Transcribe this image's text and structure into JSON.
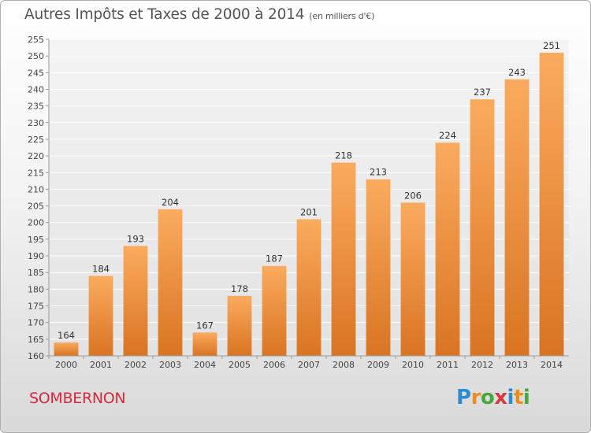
{
  "title": "Autres Impôts et Taxes de 2000 à 2014",
  "subtitle": "(en milliers d'€)",
  "commune": "SOMBERNON",
  "logo": {
    "letters": [
      "P",
      "r",
      "o",
      "x",
      "i",
      "t",
      "i"
    ],
    "colors": [
      "#2e8bd0",
      "#f08c1a",
      "#46a83c",
      "#d5383e",
      "#2e8bd0",
      "#f08c1a",
      "#46a83c"
    ]
  },
  "colors": {
    "bar_top": "#fbab5e",
    "bar_bottom": "#d97422",
    "title": "#555555",
    "commune": "#d2293f"
  },
  "chart_data": {
    "type": "bar",
    "categories": [
      "2000",
      "2001",
      "2002",
      "2003",
      "2004",
      "2005",
      "2006",
      "2007",
      "2008",
      "2009",
      "2010",
      "2011",
      "2012",
      "2013",
      "2014"
    ],
    "values": [
      164,
      184,
      193,
      204,
      167,
      178,
      187,
      201,
      218,
      213,
      206,
      224,
      237,
      243,
      251
    ],
    "ylim": [
      160,
      255
    ],
    "yticks": [
      160,
      165,
      170,
      175,
      180,
      185,
      190,
      195,
      200,
      205,
      210,
      215,
      220,
      225,
      230,
      235,
      240,
      245,
      250,
      255
    ],
    "grid": true,
    "legend": "none"
  }
}
